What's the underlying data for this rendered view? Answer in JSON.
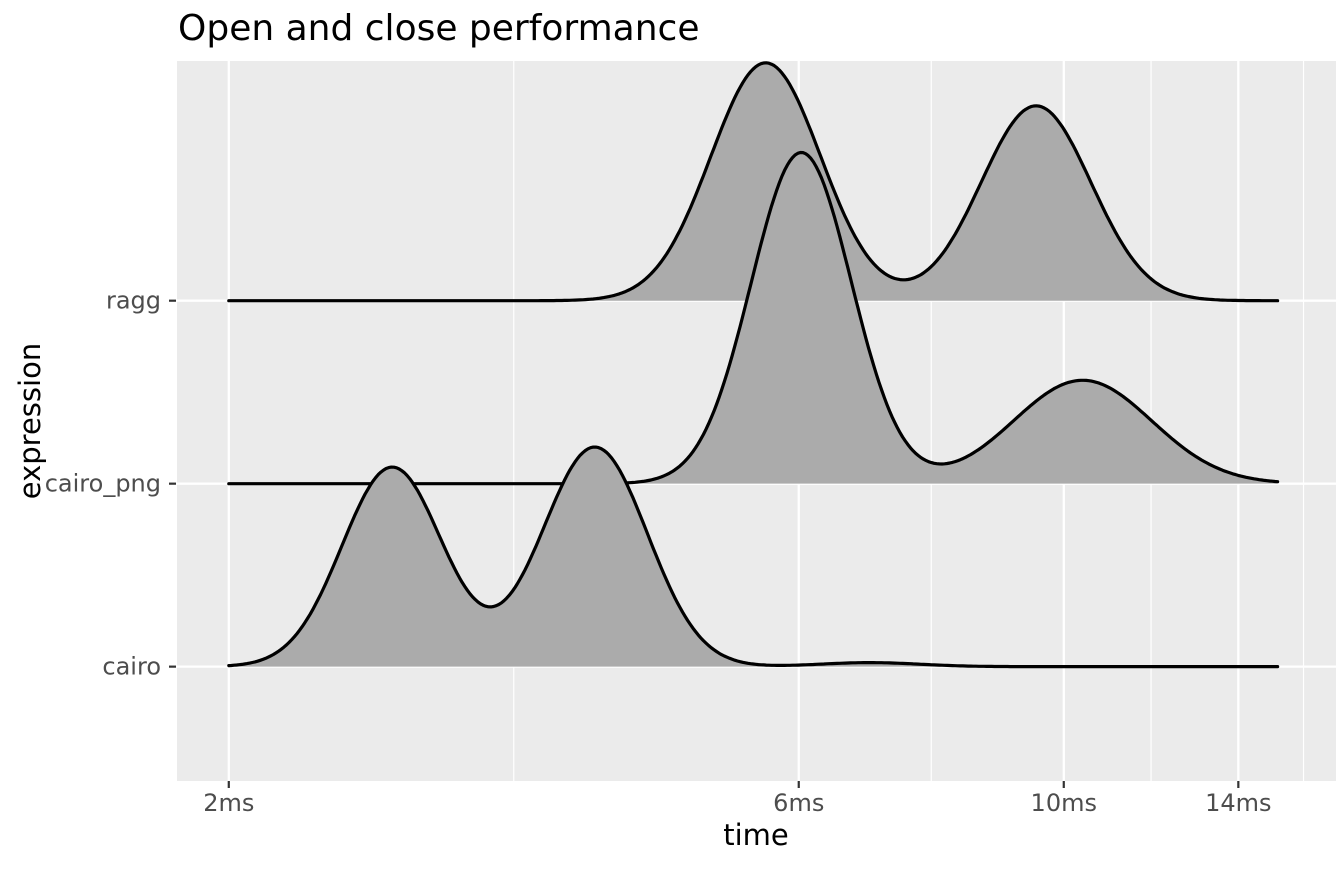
{
  "figure": {
    "title": "Open and close performance",
    "x_axis_title": "time",
    "y_axis_title": "expression"
  },
  "colors": {
    "background": "#FFFFFF",
    "panel": "#EBEBEB",
    "gridline_major": "#FFFFFF",
    "gridline_minor": "#FFFFFF",
    "ridge_fill": "#ABABAB",
    "ridge_line": "#000000",
    "tick_mark": "#333333",
    "tick_label": "#4D4D4D",
    "title_text": "#000000",
    "axis_title_text": "#000000"
  },
  "chart_data": {
    "type": "ridgeline-density",
    "title": "Open and close performance",
    "xlabel": "time",
    "ylabel": "expression",
    "x_scale": "log10",
    "x_unit": "ms",
    "grid": "major-and-minor",
    "legend": "none",
    "x_axis_range_ms": [
      1.81,
      16.9
    ],
    "x_ticks": [
      {
        "time_ms": 2,
        "label": "2ms"
      },
      {
        "time_ms": 6,
        "label": "6ms"
      },
      {
        "time_ms": 10,
        "label": "10ms"
      },
      {
        "time_ms": 14,
        "label": "14ms"
      }
    ],
    "x_minor_gridlines_ms": [
      3.464,
      7.746,
      11.832,
      15.874
    ],
    "y_axis_range_rows": [
      0.375,
      4.31
    ],
    "categories": [
      {
        "name": "cairo",
        "row": 1
      },
      {
        "name": "cairo_png",
        "row": 2
      },
      {
        "name": "ragg",
        "row": 3
      }
    ],
    "curve_range_ms": [
      2.0,
      15.1
    ],
    "series": [
      {
        "name": "ragg",
        "row": 3,
        "peaks": [
          {
            "time_ms": 5.63,
            "height_rows": 1.3
          },
          {
            "time_ms": 9.48,
            "height_rows": 1.07
          }
        ],
        "valleys": [
          {
            "time_ms": 7.45,
            "height_rows": 0.11
          }
        ],
        "components": [
          {
            "center_ms": 5.63,
            "sigma_log10": 0.046,
            "height_rows": 1.3
          },
          {
            "center_ms": 9.48,
            "sigma_log10": 0.046,
            "height_rows": 1.065
          }
        ]
      },
      {
        "name": "cairo_png",
        "row": 2,
        "peaks": [
          {
            "time_ms": 6.03,
            "height_rows": 1.81
          },
          {
            "time_ms": 10.37,
            "height_rows": 0.56
          }
        ],
        "valleys": [
          {
            "time_ms": 7.9,
            "height_rows": 0.12
          }
        ],
        "components": [
          {
            "center_ms": 6.03,
            "sigma_log10": 0.042,
            "height_rows": 1.81
          },
          {
            "center_ms": 10.37,
            "sigma_log10": 0.058,
            "height_rows": 0.565
          }
        ]
      },
      {
        "name": "cairo",
        "row": 1,
        "peaks": [
          {
            "time_ms": 2.74,
            "height_rows": 1.09
          },
          {
            "time_ms": 4.05,
            "height_rows": 1.2
          },
          {
            "time_ms": 6.88,
            "height_rows": 0.02
          }
        ],
        "valleys": [
          {
            "time_ms": 3.34,
            "height_rows": 0.37
          }
        ],
        "components": [
          {
            "center_ms": 2.74,
            "sigma_log10": 0.042,
            "height_rows": 1.09
          },
          {
            "center_ms": 4.05,
            "sigma_log10": 0.044,
            "height_rows": 1.2
          },
          {
            "center_ms": 6.88,
            "sigma_log10": 0.042,
            "height_rows": 0.022
          }
        ]
      }
    ]
  }
}
